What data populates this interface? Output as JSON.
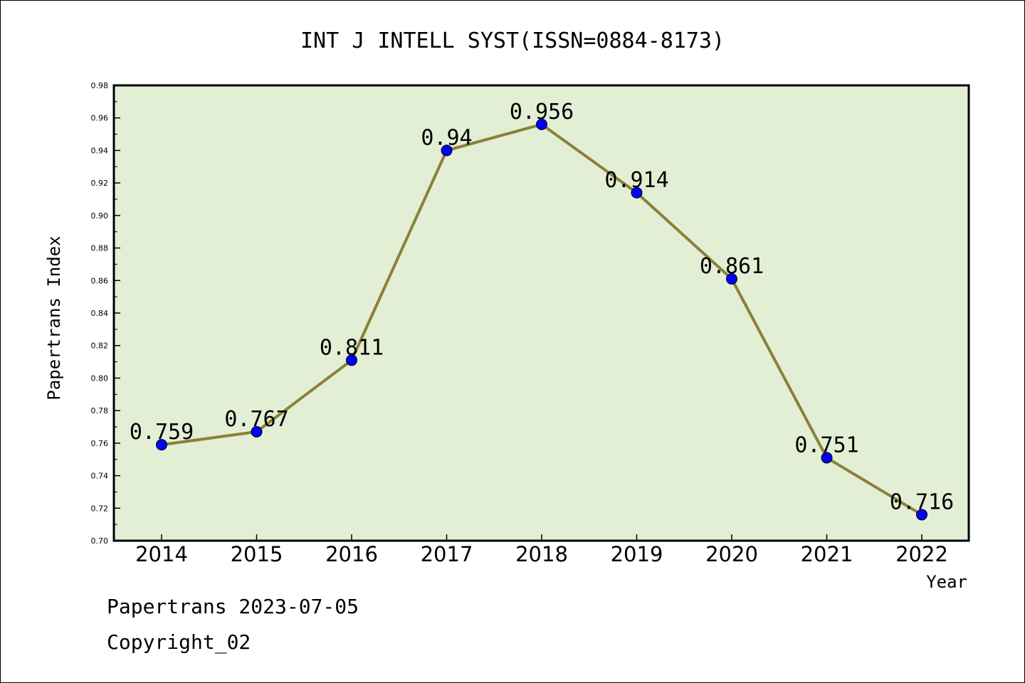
{
  "chart_data": {
    "type": "line",
    "title": "INT J INTELL SYST(ISSN=0884-8173)",
    "xlabel": "Year",
    "ylabel": "Papertrans Index",
    "categories": [
      "2014",
      "2015",
      "2016",
      "2017",
      "2018",
      "2019",
      "2020",
      "2021",
      "2022"
    ],
    "values": [
      0.759,
      0.767,
      0.811,
      0.94,
      0.956,
      0.914,
      0.861,
      0.751,
      0.716
    ],
    "data_labels": [
      "0.759",
      "0.767",
      "0.811",
      "0.94",
      "0.956",
      "0.914",
      "0.861",
      "0.751",
      "0.716"
    ],
    "ylim": [
      0.7,
      0.98
    ],
    "yticks": [
      "0.70",
      "0.72",
      "0.74",
      "0.76",
      "0.78",
      "0.80",
      "0.82",
      "0.84",
      "0.86",
      "0.88",
      "0.90",
      "0.92",
      "0.94",
      "0.96",
      "0.98"
    ],
    "grid": false,
    "legend": "none",
    "colors": {
      "plot_background": "#e2efd5",
      "line": "#8b8038",
      "marker": "#0000ff"
    }
  },
  "footer": {
    "date_line": "Papertrans 2023-07-05",
    "copyright": "Copyright_02"
  }
}
